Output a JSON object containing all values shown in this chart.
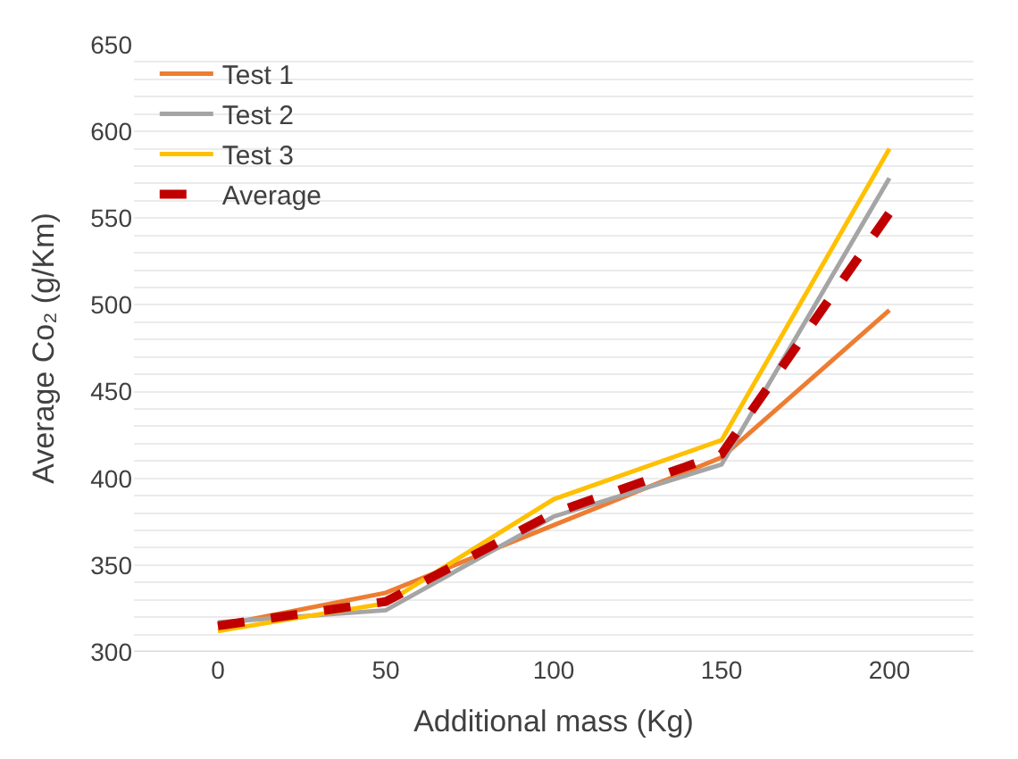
{
  "chart_data": {
    "type": "line",
    "xlabel": "Additional mass (Kg)",
    "ylabel": "Average Co₂ (g/Km)",
    "categories": [
      "0",
      "50",
      "100",
      "150",
      "200"
    ],
    "series": [
      {
        "name": "Test 1",
        "color": "#ed7d31",
        "values": [
          315,
          334,
          373,
          412,
          497
        ]
      },
      {
        "name": "Test 2",
        "color": "#a5a5a5",
        "values": [
          317,
          324,
          378,
          408,
          573
        ]
      },
      {
        "name": "Test 3",
        "color": "#ffc000",
        "values": [
          312,
          328,
          388,
          422,
          590
        ]
      },
      {
        "name": "Average",
        "color": "#c00000",
        "values": [
          315,
          329,
          380,
          414,
          553
        ],
        "line_style": "dashed"
      }
    ],
    "ylim": [
      300,
      650
    ],
    "yticks": [
      300,
      {
        "value": 310,
        "label": null
      },
      {
        "value": 320,
        "label": null
      },
      {
        "value": 330,
        "label": null
      },
      {
        "value": 340,
        "label": null
      },
      350,
      {
        "value": 360,
        "label": null
      },
      {
        "value": 370,
        "label": null
      },
      {
        "value": 380,
        "label": null
      },
      {
        "value": 390,
        "label": null
      },
      400,
      {
        "value": 410,
        "label": null
      },
      {
        "value": 420,
        "label": null
      },
      {
        "value": 430,
        "label": null
      },
      {
        "value": 440,
        "label": null
      },
      450,
      {
        "value": 460,
        "label": null
      },
      {
        "value": 470,
        "label": null
      },
      {
        "value": 480,
        "label": null
      },
      {
        "value": 490,
        "label": null
      },
      500,
      {
        "value": 510,
        "label": null
      },
      {
        "value": 520,
        "label": null
      },
      {
        "value": 530,
        "label": null
      },
      {
        "value": 540,
        "label": null
      },
      550,
      {
        "value": 560,
        "label": null
      },
      {
        "value": 570,
        "label": null
      },
      {
        "value": 580,
        "label": null
      },
      {
        "value": 590,
        "label": null
      },
      600,
      {
        "value": 610,
        "label": null
      },
      {
        "value": 620,
        "label": null
      },
      {
        "value": 630,
        "label": null
      },
      {
        "value": 640,
        "label": null
      },
      650
    ],
    "grid": "y",
    "legend": "top left",
    "marker": "none",
    "line_style": "solid"
  }
}
